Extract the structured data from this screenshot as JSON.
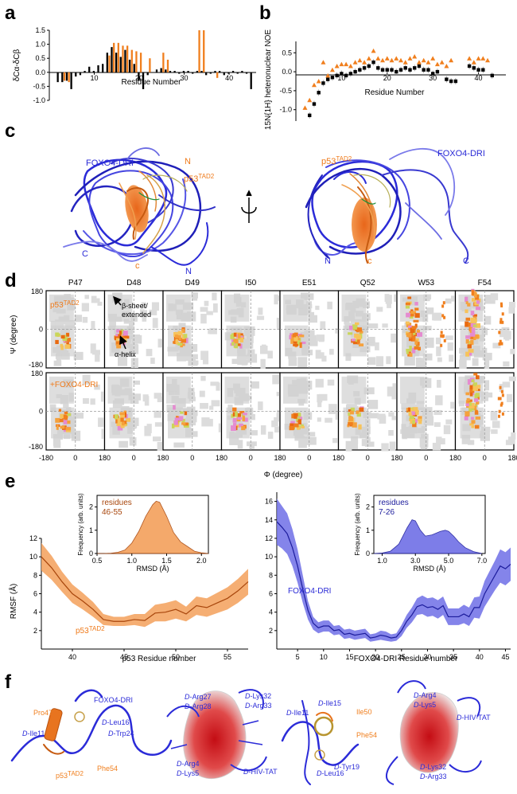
{
  "colors": {
    "orange": "#f07f1e",
    "black": "#000000",
    "blue": "#2b2bd8",
    "blue_band": "#6f6fe6",
    "orange_band": "#f3a05b",
    "grey": "#d4d4d4"
  },
  "panel_labels": {
    "a": "a",
    "b": "b",
    "c": "c",
    "d": "d",
    "e": "e",
    "f": "f"
  },
  "panel_a": {
    "ylabel": "δCα-δCβ",
    "xlabel": "Residue Number",
    "yticks": [
      "1.5",
      "1.0",
      "0.5",
      "0.0",
      "-0.5",
      "-1.0"
    ],
    "xticks": [
      "10",
      "20",
      "30",
      "40"
    ]
  },
  "panel_b": {
    "ylabel": "15N{1H} heteronuclear NOE",
    "xlabel": "Residue Number",
    "yticks": [
      "0.5",
      "0.0",
      "-0.5",
      "-1.0"
    ],
    "xticks": [
      "10",
      "20",
      "30",
      "40"
    ]
  },
  "panel_c": {
    "left": {
      "foxo": "FOXO4-DRI",
      "p53": "p53",
      "p53_sup": "TAD2",
      "n_orange": "N",
      "c_orange": "c",
      "c_blue": "C",
      "n_blue": "N"
    },
    "right": {
      "foxo": "FOXO4-DRI",
      "p53": "p53",
      "p53_sup": "TAD2",
      "n_blue": "N",
      "c_orange": "c",
      "c_blue": "C"
    }
  },
  "panel_d": {
    "residues": [
      "P47",
      "D48",
      "D49",
      "I50",
      "E51",
      "Q52",
      "W53",
      "F54"
    ],
    "top_label": "p53",
    "top_sup": "TAD2",
    "bottom_label": "+FOXO4-DRI",
    "beta_label_1": "β-sheet/",
    "beta_label_2": "extended",
    "alpha_label": "α-helix",
    "ylabel": "Ψ (degree)",
    "xlabel": "Φ (degree)",
    "yticks": [
      "180",
      "0",
      "-180"
    ],
    "xticks": [
      "-180",
      "0",
      "180"
    ]
  },
  "panel_e": {
    "left": {
      "ylabel": "RMSF (Å)",
      "xlabel": "p53 Residue number",
      "series_label": "p53",
      "series_sup": "TAD2",
      "yticks": [
        "12",
        "10",
        "8",
        "6",
        "4",
        "2"
      ],
      "xticks": [
        "40",
        "45",
        "50",
        "55"
      ],
      "inset": {
        "ylabel": "Frequency (arb. units)",
        "xlabel": "RMSD (Å)",
        "legend_1": "residues",
        "legend_2": "46-55",
        "xticks": [
          "0.5",
          "1.0",
          "1.5",
          "2.0"
        ],
        "yticks": [
          "2",
          "1",
          "0"
        ]
      }
    },
    "right": {
      "ylabel": "",
      "xlabel": "FOXO4-DRI Residue number",
      "series_label": "FOXO4-DRI",
      "yticks": [
        "16",
        "14",
        "12",
        "10",
        "8",
        "6",
        "4",
        "2"
      ],
      "xticks": [
        "5",
        "10",
        "15",
        "20",
        "25",
        "30",
        "35",
        "40",
        "45"
      ],
      "inset": {
        "ylabel": "Frequency (arb. units)",
        "xlabel": "RMSD (Å)",
        "legend_1": "residues",
        "legend_2": "7-26",
        "xticks": [
          "1.0",
          "3.0",
          "5.0",
          "7.0"
        ],
        "yticks": [
          "2",
          "1",
          "0"
        ]
      }
    }
  },
  "panel_f": {
    "labels": [
      "FOXO4-DRI",
      "Pro47",
      "D-Ile11",
      "D-Leu16",
      "D-Trp24",
      "p53",
      "Phe54",
      "D-Arg27",
      "D-Arg28",
      "D-Lys32",
      "D-Arg33",
      "D-Arg4",
      "D-Lys5",
      "D-HIV-TAT",
      "D-Ile15",
      "D-Ile11",
      "Ile50",
      "Phe54",
      "D-Leu16",
      "D-Tyr19",
      "D-Arg4",
      "D-Lys5",
      "D-HIV-TAT",
      "D-Lys32",
      "D-Arg33"
    ],
    "p53_sup": "TAD2"
  },
  "chart_data": [
    {
      "id": "a",
      "type": "bar",
      "xlabel": "Residue Number",
      "ylabel": "δCα-δCβ",
      "xlim": [
        0,
        46
      ],
      "ylim": [
        -1.0,
        1.5
      ],
      "series": [
        {
          "name": "",
          "color": "#000000",
          "x": [
            2,
            3,
            4,
            5,
            6,
            7,
            8,
            9,
            10,
            11,
            12,
            13,
            14,
            15,
            16,
            17,
            18,
            19,
            20,
            21,
            22,
            24,
            25,
            26,
            27,
            28,
            29,
            30,
            31,
            32,
            33,
            34,
            35,
            36,
            37,
            38,
            39,
            40,
            41,
            42,
            43,
            44,
            45
          ],
          "values": [
            -0.35,
            -0.35,
            -0.3,
            -0.6,
            -0.15,
            -0.1,
            0.05,
            0.2,
            0.05,
            0.25,
            0.3,
            0.7,
            0.9,
            0.7,
            0.55,
            0.8,
            0.45,
            0.3,
            -0.3,
            -0.6,
            -0.1,
            0.1,
            0.15,
            0.1,
            0.05,
            0.05,
            -0.05,
            0.05,
            0.05,
            -0.05,
            0.05,
            0.05,
            -0.1,
            -0.05,
            0.05,
            0.05,
            -0.1,
            -0.05,
            0.05,
            -0.05,
            0.05,
            -0.05,
            -0.6
          ]
        },
        {
          "name": "",
          "color": "#f07f1e",
          "x": [
            3,
            4,
            13,
            14,
            15,
            16,
            17,
            18,
            19,
            20,
            22,
            25,
            26,
            33,
            34,
            37
          ],
          "values": [
            -0.3,
            -0.35,
            0.6,
            1.05,
            1.05,
            0.95,
            0.95,
            0.8,
            0.75,
            0.7,
            0.5,
            0.7,
            0.45,
            1.5,
            1.5,
            -0.2
          ]
        }
      ]
    },
    {
      "id": "b",
      "type": "scatter",
      "xlabel": "Residue Number",
      "ylabel": "15N{1H} heteronuclear NOE",
      "xlim": [
        0,
        46
      ],
      "ylim": [
        -1.3,
        0.8
      ],
      "series": [
        {
          "name": "",
          "marker": "square",
          "color": "#000000",
          "x": [
            3,
            4,
            5,
            6,
            7,
            8,
            9,
            10,
            11,
            12,
            13,
            14,
            15,
            16,
            17,
            18,
            19,
            20,
            21,
            22,
            23,
            24,
            25,
            26,
            27,
            28,
            29,
            30,
            31,
            33,
            34,
            35,
            38,
            39,
            40,
            41,
            43
          ],
          "values": [
            -1.15,
            -0.85,
            -0.55,
            -0.3,
            -0.2,
            -0.15,
            -0.1,
            -0.05,
            -0.1,
            -0.05,
            0.0,
            0.05,
            0.1,
            0.15,
            0.25,
            0.1,
            0.05,
            0.05,
            0.05,
            0.0,
            0.05,
            0.1,
            0.05,
            0.1,
            0.15,
            0.05,
            0.05,
            -0.05,
            0.0,
            -0.2,
            -0.25,
            -0.25,
            0.15,
            0.1,
            0.05,
            0.05,
            -0.1
          ]
        },
        {
          "name": "",
          "marker": "triangle",
          "color": "#f07f1e",
          "x": [
            2,
            3,
            4,
            5,
            6,
            7,
            8,
            9,
            10,
            11,
            12,
            13,
            14,
            15,
            16,
            17,
            18,
            19,
            20,
            21,
            22,
            23,
            24,
            25,
            26,
            27,
            28,
            29,
            30,
            31,
            32,
            33,
            34,
            38,
            39,
            40,
            41,
            42
          ],
          "values": [
            -0.95,
            -0.75,
            -0.35,
            -0.25,
            0.25,
            -0.1,
            0.05,
            0.15,
            0.2,
            0.2,
            0.15,
            0.25,
            0.3,
            0.25,
            0.35,
            0.55,
            0.35,
            0.3,
            0.35,
            0.3,
            0.35,
            0.3,
            0.25,
            0.35,
            0.4,
            0.25,
            0.3,
            0.25,
            0.35,
            0.2,
            0.25,
            0.15,
            0.3,
            0.35,
            0.25,
            0.35,
            0.35,
            0.3
          ]
        }
      ]
    },
    {
      "id": "e-left",
      "type": "line",
      "xlabel": "p53 Residue number",
      "ylabel": "RMSF (Å)",
      "xlim": [
        37,
        57
      ],
      "ylim": [
        0,
        12
      ],
      "series": [
        {
          "name": "p53TAD2",
          "color": "#d05a10",
          "x": [
            37,
            38,
            39,
            40,
            41,
            42,
            43,
            44,
            45,
            46,
            47,
            48,
            49,
            50,
            51,
            52,
            53,
            54,
            55,
            56,
            57
          ],
          "values": [
            10.0,
            8.8,
            7.3,
            6.0,
            5.2,
            4.3,
            3.2,
            3.0,
            3.0,
            3.2,
            3.1,
            3.9,
            4.0,
            4.3,
            3.8,
            4.7,
            4.5,
            5.0,
            5.5,
            6.3,
            7.3
          ],
          "band": [
            1.5,
            1.3,
            1.1,
            1.0,
            0.9,
            0.8,
            0.6,
            0.5,
            0.5,
            0.6,
            0.7,
            0.9,
            1.0,
            1.0,
            0.8,
            1.0,
            1.0,
            1.1,
            1.2,
            1.3,
            1.4
          ]
        }
      ],
      "inset": {
        "type": "area",
        "xlabel": "RMSD (Å)",
        "ylabel": "Frequency (arb. units)",
        "xlim": [
          0.5,
          2.1
        ],
        "ylim": [
          0,
          2.5
        ],
        "x": [
          0.5,
          0.6,
          0.7,
          0.8,
          0.9,
          1.0,
          1.1,
          1.2,
          1.3,
          1.35,
          1.4,
          1.5,
          1.6,
          1.7,
          1.8,
          1.9,
          2.0,
          2.1
        ],
        "values": [
          0,
          0,
          0.01,
          0.05,
          0.15,
          0.45,
          0.95,
          1.6,
          2.1,
          2.25,
          2.2,
          1.6,
          0.9,
          0.5,
          0.3,
          0.1,
          0.03,
          0
        ]
      }
    },
    {
      "id": "e-right",
      "type": "line",
      "xlabel": "FOXO4-DRI Residue number",
      "ylabel": "",
      "xlim": [
        1,
        46
      ],
      "ylim": [
        0,
        17
      ],
      "series": [
        {
          "name": "FOXO4-DRI",
          "color": "#1c1c9c",
          "x": [
            1,
            2,
            3,
            4,
            5,
            6,
            7,
            8,
            9,
            10,
            11,
            12,
            13,
            14,
            15,
            16,
            17,
            18,
            19,
            20,
            21,
            22,
            23,
            24,
            25,
            26,
            27,
            28,
            29,
            30,
            31,
            32,
            33,
            34,
            35,
            36,
            37,
            38,
            39,
            40,
            41,
            42,
            43,
            44,
            45,
            46
          ],
          "values": [
            13.8,
            13.2,
            12.5,
            11.0,
            9.0,
            6.5,
            4.2,
            2.8,
            2.3,
            2.5,
            2.5,
            2.0,
            2.1,
            1.6,
            1.7,
            1.5,
            1.6,
            1.7,
            1.2,
            1.3,
            1.5,
            1.4,
            1.2,
            1.3,
            2.0,
            3.0,
            3.7,
            4.6,
            4.8,
            4.5,
            4.6,
            4.3,
            4.7,
            3.5,
            3.5,
            3.5,
            3.8,
            3.5,
            4.5,
            4.5,
            6.0,
            7.0,
            8.0,
            9.0,
            8.7,
            9.2
          ],
          "band": [
            2.5,
            2.3,
            2.2,
            2.0,
            1.8,
            1.5,
            1.0,
            0.7,
            0.6,
            0.6,
            0.6,
            0.5,
            0.5,
            0.5,
            0.5,
            0.5,
            0.5,
            0.5,
            0.4,
            0.4,
            0.5,
            0.5,
            0.4,
            0.4,
            0.6,
            0.7,
            0.8,
            0.9,
            1.0,
            1.0,
            1.0,
            1.0,
            1.0,
            0.9,
            0.9,
            0.9,
            1.0,
            1.0,
            1.1,
            1.2,
            1.4,
            1.5,
            1.6,
            1.8,
            1.8,
            1.8
          ]
        }
      ],
      "inset": {
        "type": "area",
        "xlabel": "RMSD (Å)",
        "ylabel": "Frequency (arb. units)",
        "xlim": [
          0.5,
          7.2
        ],
        "ylim": [
          0,
          2.5
        ],
        "x": [
          0.5,
          1.0,
          1.5,
          2.0,
          2.5,
          2.8,
          3.0,
          3.3,
          3.6,
          4.0,
          4.5,
          4.8,
          5.0,
          5.3,
          5.6,
          6.0,
          6.5,
          7.0
        ],
        "values": [
          0,
          0.02,
          0.1,
          0.4,
          1.1,
          1.45,
          1.4,
          1.0,
          0.75,
          0.8,
          0.95,
          1.0,
          0.95,
          0.75,
          0.5,
          0.25,
          0.08,
          0
        ]
      }
    }
  ]
}
